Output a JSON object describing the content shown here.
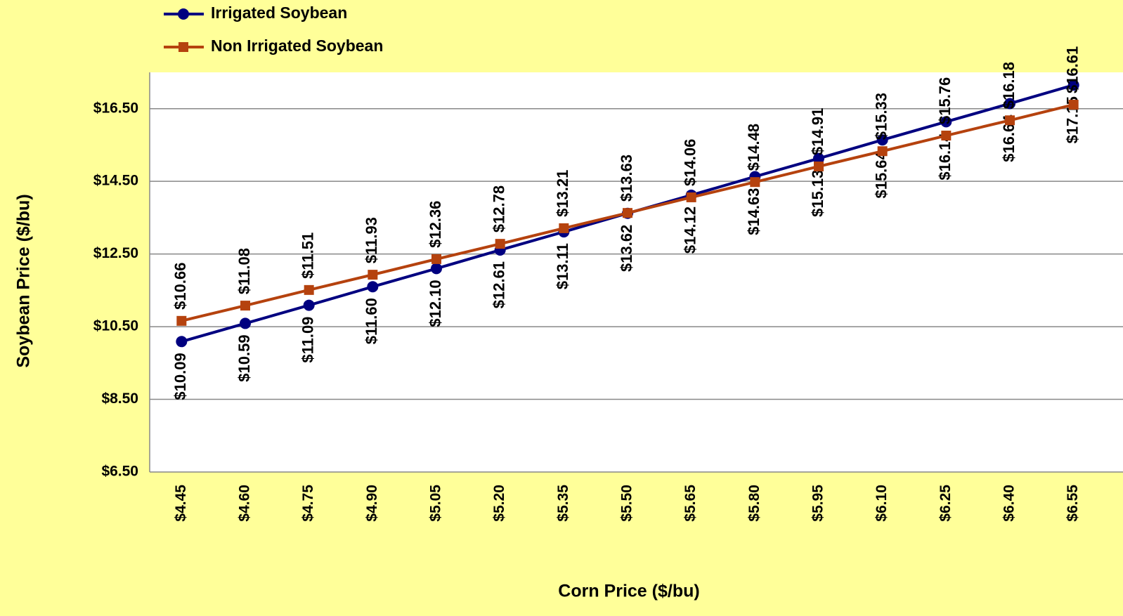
{
  "chart_data": {
    "type": "line",
    "x_label": "Corn Price ($/bu)",
    "y_label": "Soybean Price ($/bu)",
    "categories": [
      "$4.45",
      "$4.60",
      "$4.75",
      "$4.90",
      "$5.05",
      "$5.20",
      "$5.35",
      "$5.50",
      "$5.65",
      "$5.80",
      "$5.95",
      "$6.10",
      "$6.25",
      "$6.40",
      "$6.55"
    ],
    "series": [
      {
        "name": "Irrigated Soybean",
        "color": "#000080",
        "marker": "circle",
        "label_side": "below",
        "values": [
          10.09,
          10.59,
          11.09,
          11.6,
          12.1,
          12.61,
          13.11,
          13.62,
          14.12,
          14.63,
          15.13,
          15.64,
          16.14,
          16.64,
          17.15
        ],
        "value_labels": [
          "$10.09",
          "$10.59",
          "$11.09",
          "$11.60",
          "$12.10",
          "$12.61",
          "$13.11",
          "$13.62",
          "$14.12",
          "$14.63",
          "$15.13",
          "$15.64",
          "$16.14",
          "$16.64",
          "$17.15"
        ]
      },
      {
        "name": "Non Irrigated Soybean",
        "color": "#b5420e",
        "marker": "square",
        "label_side": "above",
        "values": [
          10.66,
          11.08,
          11.51,
          11.93,
          12.36,
          12.78,
          13.21,
          13.63,
          14.06,
          14.48,
          14.91,
          15.33,
          15.76,
          16.18,
          16.61
        ],
        "value_labels": [
          "$10.66",
          "$11.08",
          "$11.51",
          "$11.93",
          "$12.36",
          "$12.78",
          "$13.21",
          "$13.63",
          "$14.06",
          "$14.48",
          "$14.91",
          "$15.33",
          "$15.76",
          "$16.18",
          "$16.61"
        ]
      }
    ],
    "ylim": [
      6.5,
      17.5
    ],
    "yticks": [
      {
        "value": 6.5,
        "label": "$6.50"
      },
      {
        "value": 8.5,
        "label": "$8.50"
      },
      {
        "value": 10.5,
        "label": "$10.50"
      },
      {
        "value": 12.5,
        "label": "$12.50"
      },
      {
        "value": 14.5,
        "label": "$14.50"
      },
      {
        "value": 16.5,
        "label": "$16.50"
      }
    ],
    "grid": true,
    "legend": "top-left"
  }
}
